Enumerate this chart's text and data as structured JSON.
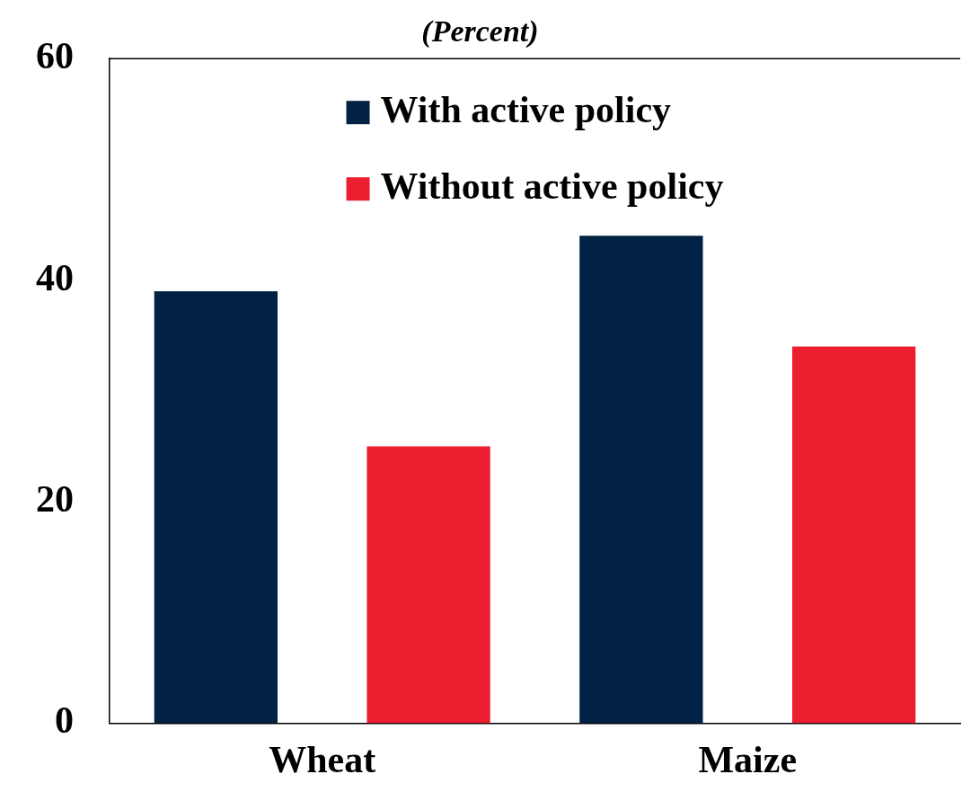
{
  "chart_data": {
    "type": "bar",
    "title": "(Percent)",
    "categories": [
      "Wheat",
      "Maize"
    ],
    "series": [
      {
        "name": "With active policy",
        "color": "#012244",
        "values": [
          39,
          44
        ]
      },
      {
        "name": "Without active policy",
        "color": "#eb1f30",
        "values": [
          25,
          34
        ]
      }
    ],
    "ylim": [
      0,
      60
    ],
    "yticks": [
      0,
      20,
      40,
      60
    ],
    "grid": false,
    "legend": "top"
  }
}
